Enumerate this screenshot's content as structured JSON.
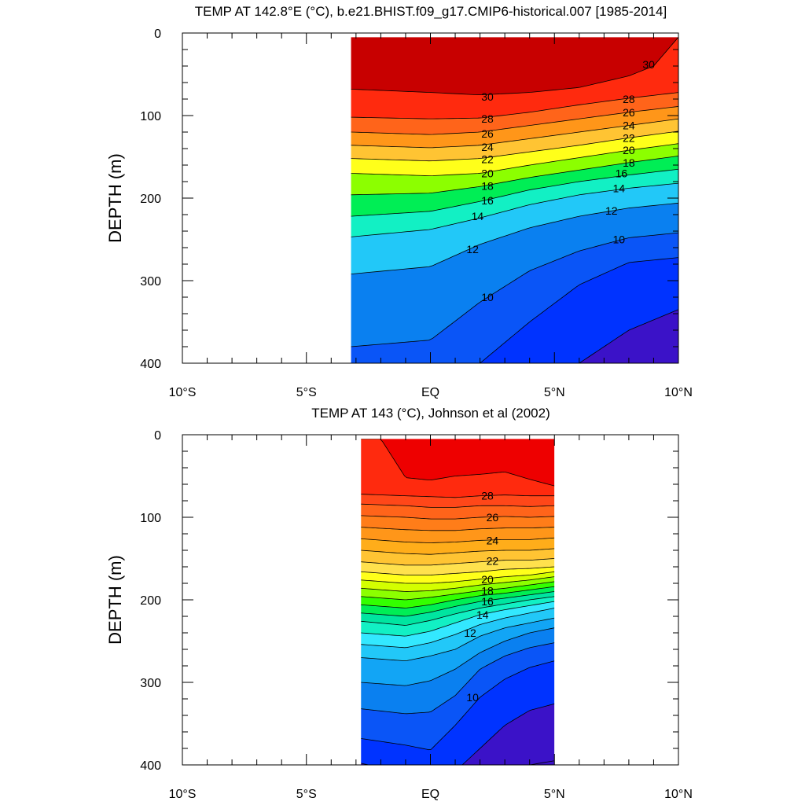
{
  "colors": {
    "temp_scale": [
      "#3b12c8",
      "#0033ff",
      "#0a55f7",
      "#0a80f0",
      "#12a5f5",
      "#22c8f8",
      "#33e8ff",
      "#12f0c4",
      "#00e5a0",
      "#00ee55",
      "#33ff00",
      "#8cff00",
      "#d4ff00",
      "#ffff1a",
      "#ffe14d",
      "#ffc433",
      "#ffad1a",
      "#ff9619",
      "#ff7d19",
      "#ff641a",
      "#ff4719",
      "#ff2a0e",
      "#ee0000",
      "#c80000"
    ]
  },
  "chart_data": [
    {
      "type": "contour",
      "title": "TEMP AT 142.8°E (°C), b.e21.BHIST.f09_g17.CMIP6-historical.007 [1985-2014]",
      "ylabel": "DEPTH (m)",
      "xlabel": "",
      "x_ticks": [
        "10°S",
        "5°S",
        "EQ",
        "5°N",
        "10°N"
      ],
      "y_ticks": [
        "0",
        "100",
        "200",
        "300",
        "400"
      ],
      "xlim": [
        -10,
        10
      ],
      "ylim": [
        0,
        400
      ],
      "y_inverted": true,
      "data_extent": {
        "lat": [
          -3.2,
          10
        ],
        "depth": [
          5,
          400
        ]
      },
      "contour_interval": 1,
      "isotherms": [
        {
          "level": 30,
          "lat": [
            -3.2,
            0,
            2,
            4,
            6,
            8,
            9,
            10
          ],
          "depth": [
            68,
            72,
            75,
            72,
            66,
            52,
            40,
            5
          ]
        },
        {
          "level": 28,
          "lat": [
            -3.2,
            0,
            2,
            4,
            6,
            8,
            10
          ],
          "depth": [
            102,
            104,
            103,
            96,
            87,
            79,
            72
          ]
        },
        {
          "level": 26,
          "lat": [
            -3.2,
            0,
            2,
            4,
            6,
            8,
            10
          ],
          "depth": [
            120,
            123,
            120,
            112,
            104,
            96,
            89
          ]
        },
        {
          "level": 24,
          "lat": [
            -3.2,
            0,
            2,
            4,
            6,
            8,
            10
          ],
          "depth": [
            136,
            139,
            136,
            128,
            120,
            112,
            104
          ]
        },
        {
          "level": 22,
          "lat": [
            -3.2,
            0,
            2,
            4,
            6,
            8,
            10
          ],
          "depth": [
            152,
            155,
            152,
            144,
            136,
            127,
            119
          ]
        },
        {
          "level": 20,
          "lat": [
            -3.2,
            0,
            2,
            4,
            6,
            8,
            10
          ],
          "depth": [
            170,
            173,
            170,
            160,
            151,
            142,
            134
          ]
        },
        {
          "level": 18,
          "lat": [
            -3.2,
            0,
            2,
            4,
            6,
            8,
            10
          ],
          "depth": [
            196,
            194,
            186,
            175,
            166,
            157,
            149
          ]
        },
        {
          "level": 16,
          "lat": [
            -3.2,
            0,
            2,
            4,
            6,
            8,
            10
          ],
          "depth": [
            222,
            216,
            204,
            190,
            180,
            172,
            165
          ]
        },
        {
          "level": 14,
          "lat": [
            -3.2,
            0,
            2,
            4,
            6,
            8,
            10
          ],
          "depth": [
            247,
            238,
            224,
            208,
            196,
            188,
            182
          ]
        },
        {
          "level": 12,
          "lat": [
            -3.2,
            0,
            2,
            4,
            6,
            8,
            10
          ],
          "depth": [
            292,
            283,
            256,
            236,
            222,
            212,
            206
          ]
        },
        {
          "level": 10,
          "lat": [
            -3.2,
            0,
            2,
            4,
            6,
            8,
            10
          ],
          "depth": [
            380,
            372,
            326,
            288,
            264,
            248,
            242
          ]
        },
        {
          "level": 9,
          "lat": [
            -3.2,
            0,
            2,
            4,
            6,
            8,
            10
          ],
          "depth": [
            430,
            430,
            400,
            350,
            305,
            278,
            272
          ]
        },
        {
          "level": 8,
          "lat": [
            -3.2,
            0,
            2,
            4,
            6,
            8,
            10
          ],
          "depth": [
            460,
            460,
            460,
            440,
            400,
            360,
            335
          ]
        }
      ],
      "labels": [
        {
          "text": "30",
          "lat": 2.3,
          "depth": 77
        },
        {
          "text": "30",
          "lat": 8.8,
          "depth": 38
        },
        {
          "text": "28",
          "lat": 2.3,
          "depth": 104
        },
        {
          "text": "28",
          "lat": 8.0,
          "depth": 80
        },
        {
          "text": "26",
          "lat": 2.3,
          "depth": 122
        },
        {
          "text": "26",
          "lat": 8.0,
          "depth": 96
        },
        {
          "text": "24",
          "lat": 2.3,
          "depth": 138
        },
        {
          "text": "24",
          "lat": 8.0,
          "depth": 112
        },
        {
          "text": "22",
          "lat": 2.3,
          "depth": 153
        },
        {
          "text": "22",
          "lat": 8.0,
          "depth": 127
        },
        {
          "text": "20",
          "lat": 2.3,
          "depth": 170
        },
        {
          "text": "20",
          "lat": 8.0,
          "depth": 142
        },
        {
          "text": "18",
          "lat": 2.3,
          "depth": 185
        },
        {
          "text": "18",
          "lat": 8.0,
          "depth": 157
        },
        {
          "text": "16",
          "lat": 2.3,
          "depth": 203
        },
        {
          "text": "16",
          "lat": 7.7,
          "depth": 170
        },
        {
          "text": "14",
          "lat": 1.9,
          "depth": 222
        },
        {
          "text": "14",
          "lat": 7.6,
          "depth": 188
        },
        {
          "text": "12",
          "lat": 1.7,
          "depth": 262
        },
        {
          "text": "12",
          "lat": 7.3,
          "depth": 215
        },
        {
          "text": "10",
          "lat": 2.3,
          "depth": 320
        },
        {
          "text": "10",
          "lat": 7.6,
          "depth": 250
        }
      ]
    },
    {
      "type": "contour",
      "title": "TEMP AT 143 (°C), Johnson et al (2002)",
      "ylabel": "DEPTH (m)",
      "xlabel": "",
      "x_ticks": [
        "10°S",
        "5°S",
        "EQ",
        "5°N",
        "10°N"
      ],
      "y_ticks": [
        "0",
        "100",
        "200",
        "300",
        "400"
      ],
      "xlim": [
        -10,
        10
      ],
      "ylim": [
        0,
        400
      ],
      "y_inverted": true,
      "data_extent": {
        "lat": [
          -2.8,
          5
        ],
        "depth": [
          5,
          400
        ]
      },
      "contour_interval": 1,
      "isotherms": [
        {
          "level": 29,
          "lat": [
            -2.8,
            -2.0,
            -1.0,
            0.0,
            1.0,
            2.0,
            3.0,
            4.0,
            5.0
          ],
          "depth": [
            5,
            5,
            52,
            55,
            50,
            48,
            45,
            54,
            62
          ]
        },
        {
          "level": 28,
          "lat": [
            -2.8,
            -1.0,
            0.0,
            1.0,
            2.0,
            3.0,
            4.0,
            5.0
          ],
          "depth": [
            72,
            74,
            75,
            76,
            74,
            73,
            74,
            74
          ]
        },
        {
          "level": 27,
          "lat": [
            -2.8,
            -1.0,
            0.0,
            1.0,
            2.0,
            3.0,
            4.0,
            5.0
          ],
          "depth": [
            84,
            86,
            88,
            88,
            86,
            86,
            87,
            86
          ]
        },
        {
          "level": 26,
          "lat": [
            -2.8,
            -1.0,
            0.0,
            1.0,
            2.0,
            3.0,
            4.0,
            5.0
          ],
          "depth": [
            98,
            100,
            102,
            102,
            100,
            99,
            100,
            99
          ]
        },
        {
          "level": 25,
          "lat": [
            -2.8,
            -1.0,
            0.0,
            1.0,
            2.0,
            3.0,
            4.0,
            5.0
          ],
          "depth": [
            112,
            115,
            116,
            116,
            114,
            113,
            113,
            112
          ]
        },
        {
          "level": 24,
          "lat": [
            -2.8,
            -1.0,
            0.0,
            1.0,
            2.0,
            3.0,
            4.0,
            5.0
          ],
          "depth": [
            126,
            130,
            131,
            130,
            128,
            127,
            127,
            125
          ]
        },
        {
          "level": 23,
          "lat": [
            -2.8,
            -1.0,
            0.0,
            1.0,
            2.0,
            3.0,
            4.0,
            5.0
          ],
          "depth": [
            140,
            144,
            145,
            143,
            141,
            140,
            140,
            138
          ]
        },
        {
          "level": 22,
          "lat": [
            -2.8,
            -1.0,
            0.0,
            1.0,
            2.0,
            3.0,
            4.0,
            5.0
          ],
          "depth": [
            154,
            158,
            158,
            156,
            154,
            152,
            152,
            150
          ]
        },
        {
          "level": 21,
          "lat": [
            -2.8,
            -1.0,
            0.0,
            1.0,
            2.0,
            3.0,
            4.0,
            5.0
          ],
          "depth": [
            166,
            170,
            170,
            168,
            166,
            163,
            162,
            160
          ]
        },
        {
          "level": 20,
          "lat": [
            -2.8,
            -1.0,
            0.0,
            1.0,
            2.0,
            3.0,
            4.0,
            5.0
          ],
          "depth": [
            176,
            180,
            180,
            178,
            175,
            172,
            170,
            166
          ]
        },
        {
          "level": 19,
          "lat": [
            -2.8,
            -1.0,
            0.0,
            1.0,
            2.0,
            3.0,
            4.0,
            5.0
          ],
          "depth": [
            186,
            190,
            189,
            186,
            182,
            179,
            176,
            172
          ]
        },
        {
          "level": 18,
          "lat": [
            -2.8,
            -1.0,
            0.0,
            1.0,
            2.0,
            3.0,
            4.0,
            5.0
          ],
          "depth": [
            196,
            200,
            197,
            193,
            189,
            186,
            182,
            178
          ]
        },
        {
          "level": 17,
          "lat": [
            -2.8,
            -1.0,
            0.0,
            1.0,
            2.0,
            3.0,
            4.0,
            5.0
          ],
          "depth": [
            206,
            210,
            206,
            200,
            195,
            192,
            188,
            184
          ]
        },
        {
          "level": 16,
          "lat": [
            -2.8,
            -1.0,
            0.0,
            1.0,
            2.0,
            3.0,
            4.0,
            5.0
          ],
          "depth": [
            216,
            220,
            215,
            208,
            202,
            198,
            194,
            190
          ]
        },
        {
          "level": 15,
          "lat": [
            -2.8,
            -1.0,
            0.0,
            1.0,
            2.0,
            3.0,
            4.0,
            5.0
          ],
          "depth": [
            226,
            231,
            225,
            217,
            210,
            205,
            200,
            196
          ]
        },
        {
          "level": 14,
          "lat": [
            -2.8,
            -1.0,
            0.0,
            1.0,
            2.0,
            3.0,
            4.0,
            5.0
          ],
          "depth": [
            240,
            244,
            238,
            228,
            218,
            212,
            207,
            202
          ]
        },
        {
          "level": 13,
          "lat": [
            -2.8,
            -1.0,
            0.0,
            1.0,
            2.0,
            3.0,
            4.0,
            5.0
          ],
          "depth": [
            254,
            258,
            252,
            242,
            230,
            222,
            216,
            210
          ]
        },
        {
          "level": 12,
          "lat": [
            -2.8,
            -1.0,
            0.0,
            1.0,
            2.0,
            3.0,
            4.0,
            5.0
          ],
          "depth": [
            270,
            274,
            268,
            260,
            244,
            234,
            228,
            222
          ]
        },
        {
          "level": 11,
          "lat": [
            -2.8,
            -1.0,
            0.0,
            1.0,
            2.0,
            3.0,
            4.0,
            5.0
          ],
          "depth": [
            300,
            304,
            298,
            284,
            264,
            250,
            240,
            234
          ]
        },
        {
          "level": 10,
          "lat": [
            -2.8,
            -1.0,
            0.0,
            1.0,
            2.0,
            3.0,
            4.0,
            5.0
          ],
          "depth": [
            332,
            338,
            336,
            316,
            284,
            268,
            258,
            252
          ]
        },
        {
          "level": 9,
          "lat": [
            -2.8,
            -1.0,
            0.0,
            1.0,
            2.0,
            3.0,
            4.0,
            5.0
          ],
          "depth": [
            368,
            376,
            382,
            352,
            318,
            296,
            282,
            274
          ]
        },
        {
          "level": 8,
          "lat": [
            -2.8,
            -1.0,
            0.0,
            1.0,
            2.0,
            3.0,
            4.0,
            5.0
          ],
          "depth": [
            398,
            410,
            420,
            408,
            380,
            352,
            334,
            326
          ]
        },
        {
          "level": 7,
          "lat": [
            -2.8,
            -1.0,
            0.0,
            1.0,
            2.0,
            3.0,
            4.0,
            5.0
          ],
          "depth": [
            460,
            460,
            460,
            460,
            440,
            410,
            400,
            395
          ]
        }
      ],
      "labels": [
        {
          "text": "28",
          "lat": 2.3,
          "depth": 74
        },
        {
          "text": "26",
          "lat": 2.5,
          "depth": 100
        },
        {
          "text": "24",
          "lat": 2.5,
          "depth": 128
        },
        {
          "text": "22",
          "lat": 2.5,
          "depth": 153
        },
        {
          "text": "20",
          "lat": 2.3,
          "depth": 175
        },
        {
          "text": "18",
          "lat": 2.3,
          "depth": 189
        },
        {
          "text": "16",
          "lat": 2.3,
          "depth": 202
        },
        {
          "text": "14",
          "lat": 2.1,
          "depth": 218
        },
        {
          "text": "12",
          "lat": 1.6,
          "depth": 240
        },
        {
          "text": "10",
          "lat": 1.7,
          "depth": 318
        }
      ]
    }
  ]
}
